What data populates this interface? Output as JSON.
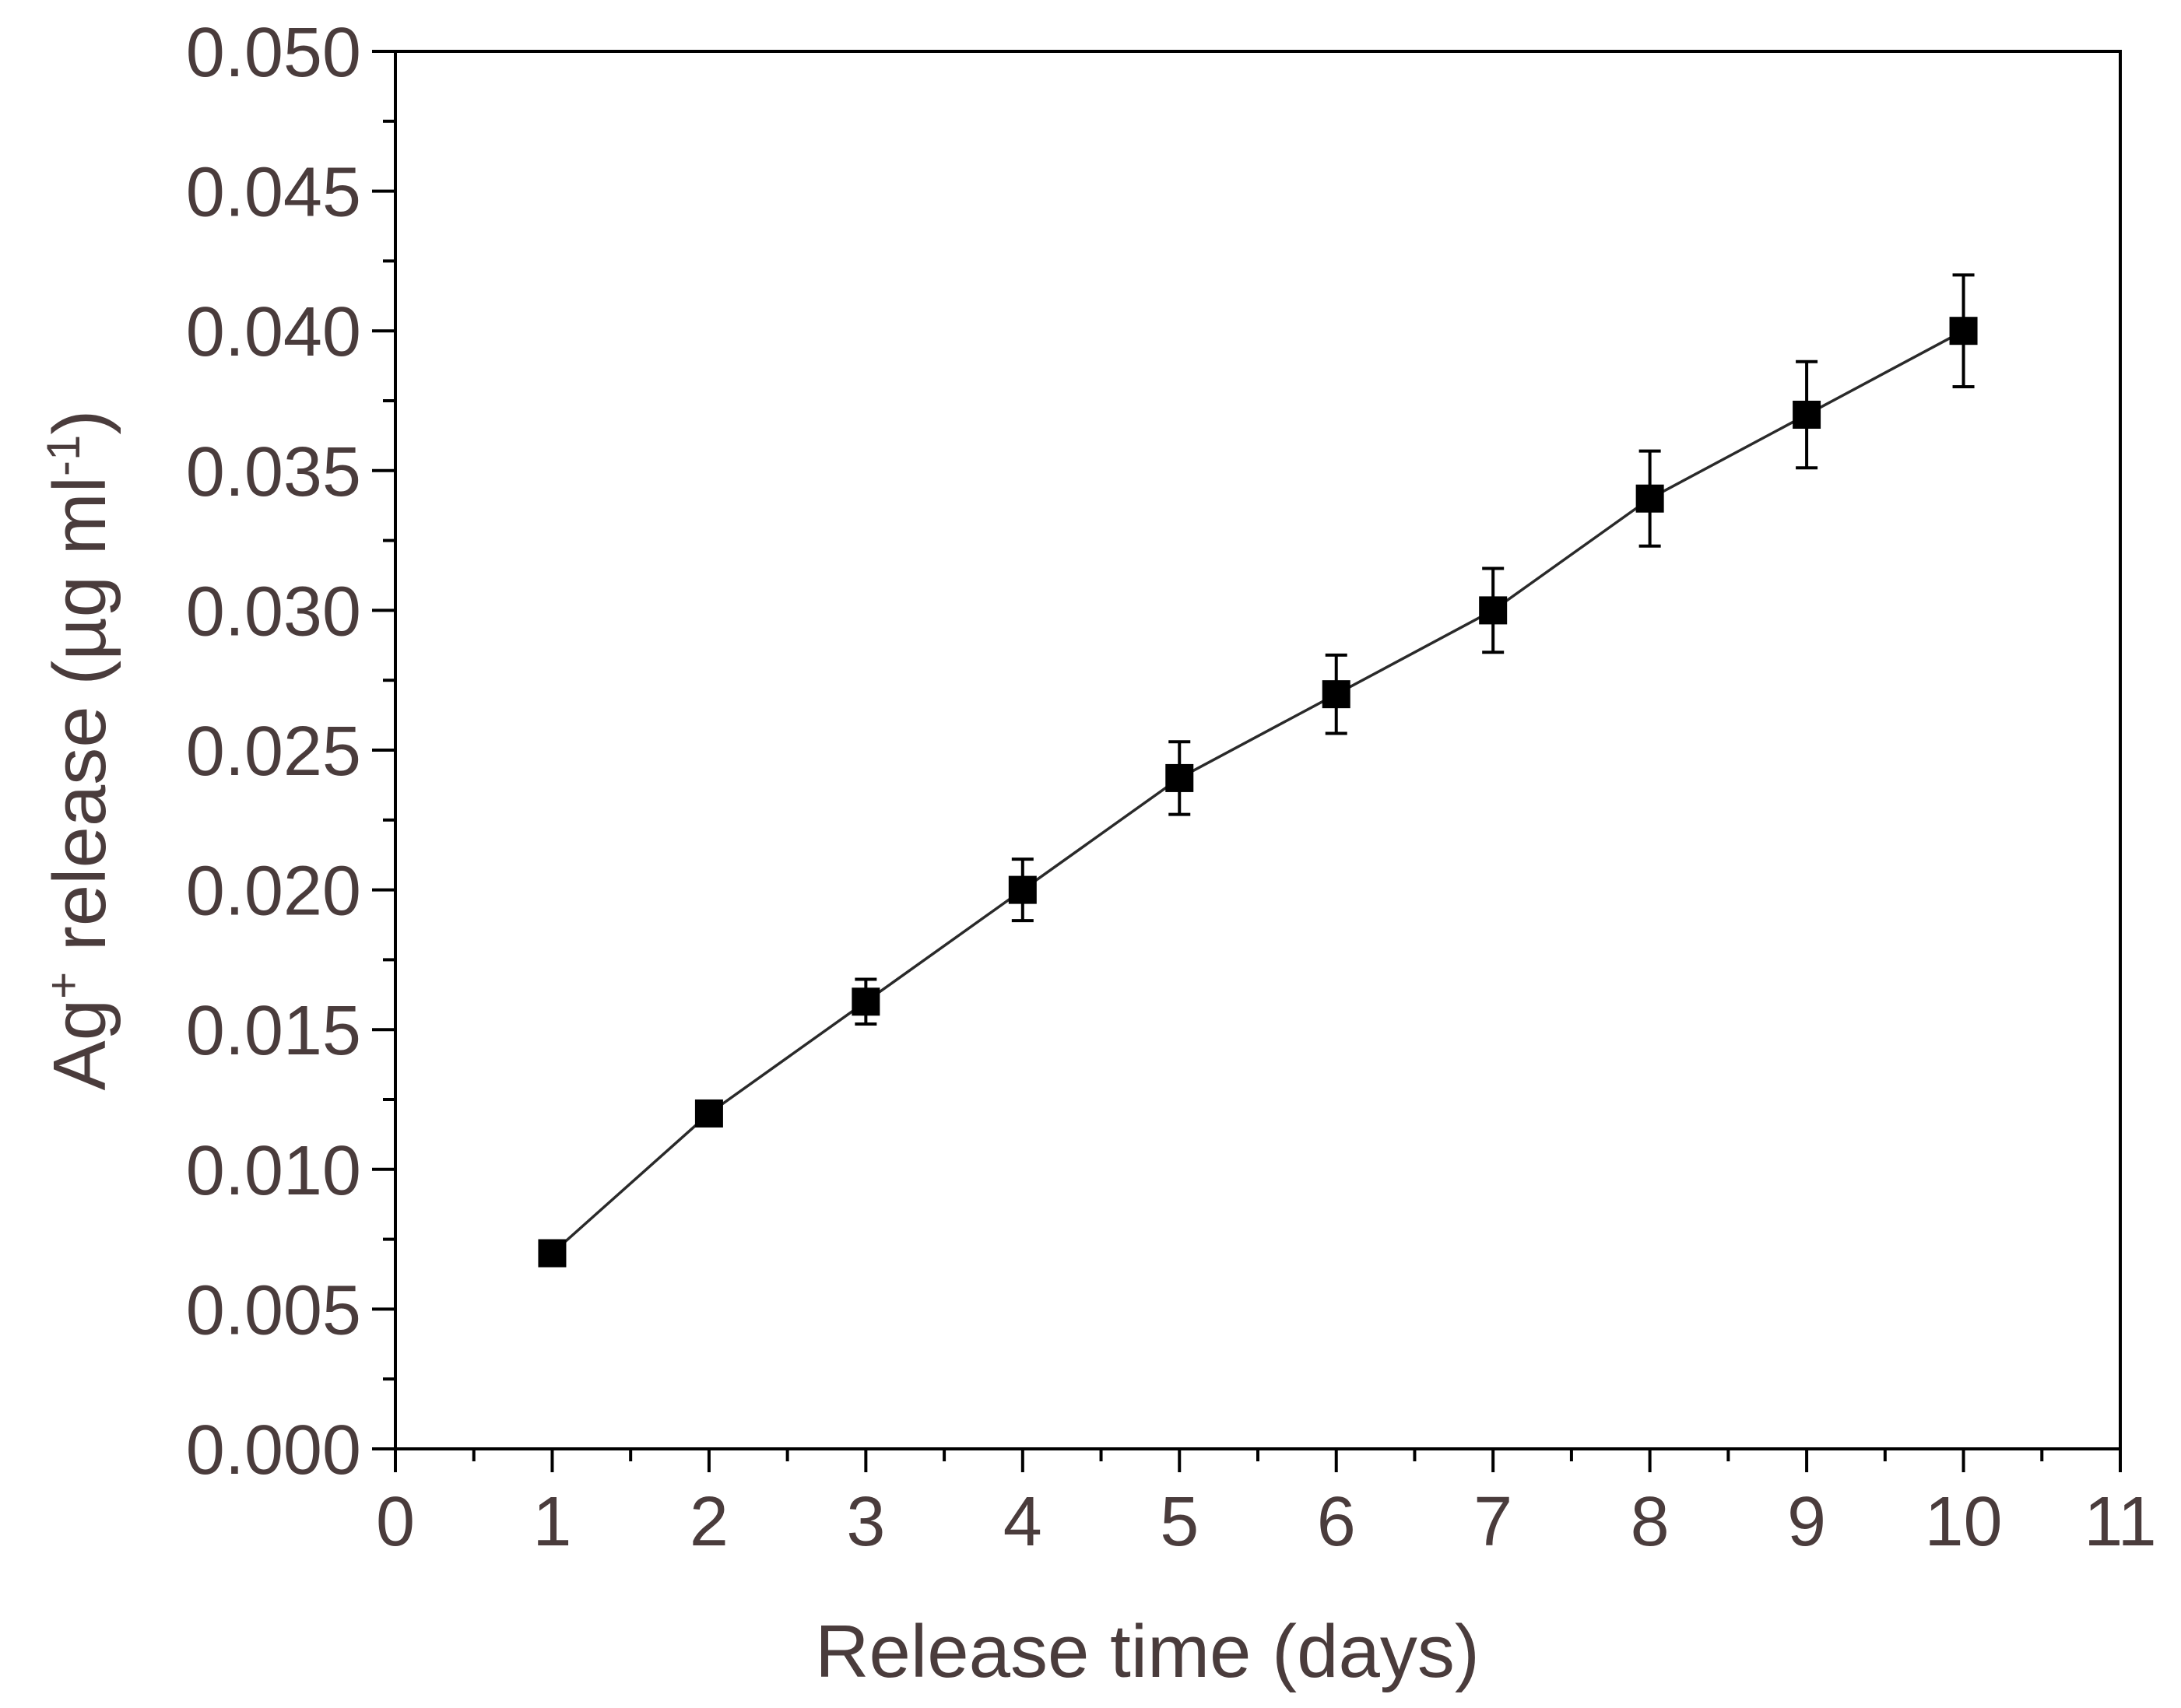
{
  "chart_data": {
    "type": "line",
    "title": "",
    "xlabel": "Release time (days)",
    "ylabel": {
      "pre": "Ag",
      "sup1": "+",
      "mid": " release (µg ml",
      "sup2": "-1",
      "post": ")"
    },
    "xlim": [
      0,
      11
    ],
    "ylim": [
      0,
      0.05
    ],
    "x_ticks": [
      0,
      1,
      2,
      3,
      4,
      5,
      6,
      7,
      8,
      9,
      10,
      11
    ],
    "x_tick_labels": [
      "0",
      "1",
      "2",
      "3",
      "4",
      "5",
      "6",
      "7",
      "8",
      "9",
      "10",
      "11"
    ],
    "y_ticks": [
      0,
      0.005,
      0.01,
      0.015,
      0.02,
      0.025,
      0.03,
      0.035,
      0.04,
      0.045,
      0.05
    ],
    "y_tick_labels": [
      "0.000",
      "0.005",
      "0.010",
      "0.015",
      "0.020",
      "0.025",
      "0.030",
      "0.035",
      "0.040",
      "0.045",
      "0.050"
    ],
    "grid": false,
    "legend": "none",
    "series": [
      {
        "marker": "square",
        "color": "#000000",
        "x": [
          1,
          2,
          3,
          4,
          5,
          6,
          7,
          8,
          9,
          10
        ],
        "y": [
          0.007,
          0.012,
          0.016,
          0.02,
          0.024,
          0.027,
          0.03,
          0.034,
          0.037,
          0.04
        ],
        "error": [
          0.0002,
          0.0003,
          0.0008,
          0.0011,
          0.0013,
          0.0014,
          0.0015,
          0.0017,
          0.0019,
          0.002
        ]
      }
    ]
  }
}
